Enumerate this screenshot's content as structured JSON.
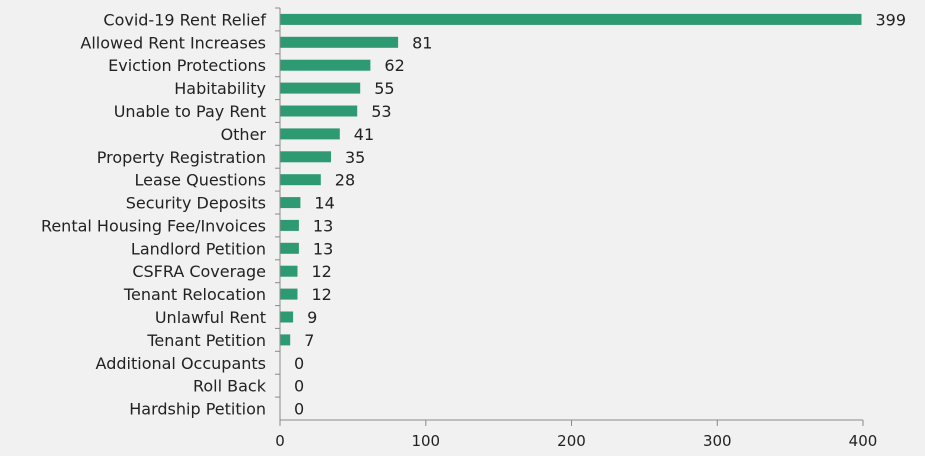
{
  "colors": {
    "bar": "#2e9a72",
    "axis": "#8a8a8a",
    "text": "#222222",
    "background": "#f1f1f1"
  },
  "chart_data": {
    "type": "bar",
    "orientation": "horizontal",
    "categories": [
      "Covid-19 Rent Relief",
      "Allowed Rent Increases",
      "Eviction Protections",
      "Habitability",
      "Unable to Pay Rent",
      "Other",
      "Property Registration",
      "Lease Questions",
      "Security Deposits",
      "Rental Housing Fee/Invoices",
      "Landlord Petition",
      "CSFRA Coverage",
      "Tenant Relocation",
      "Unlawful Rent",
      "Tenant Petition",
      "Additional Occupants",
      "Roll Back",
      "Hardship Petition"
    ],
    "values": [
      399,
      81,
      62,
      55,
      53,
      41,
      35,
      28,
      14,
      13,
      13,
      12,
      12,
      9,
      7,
      0,
      0,
      0
    ],
    "xlim": [
      0,
      400
    ],
    "xticks": [
      0,
      100,
      200,
      300,
      400
    ],
    "data_labels": true,
    "grid": false,
    "legend": "none"
  }
}
